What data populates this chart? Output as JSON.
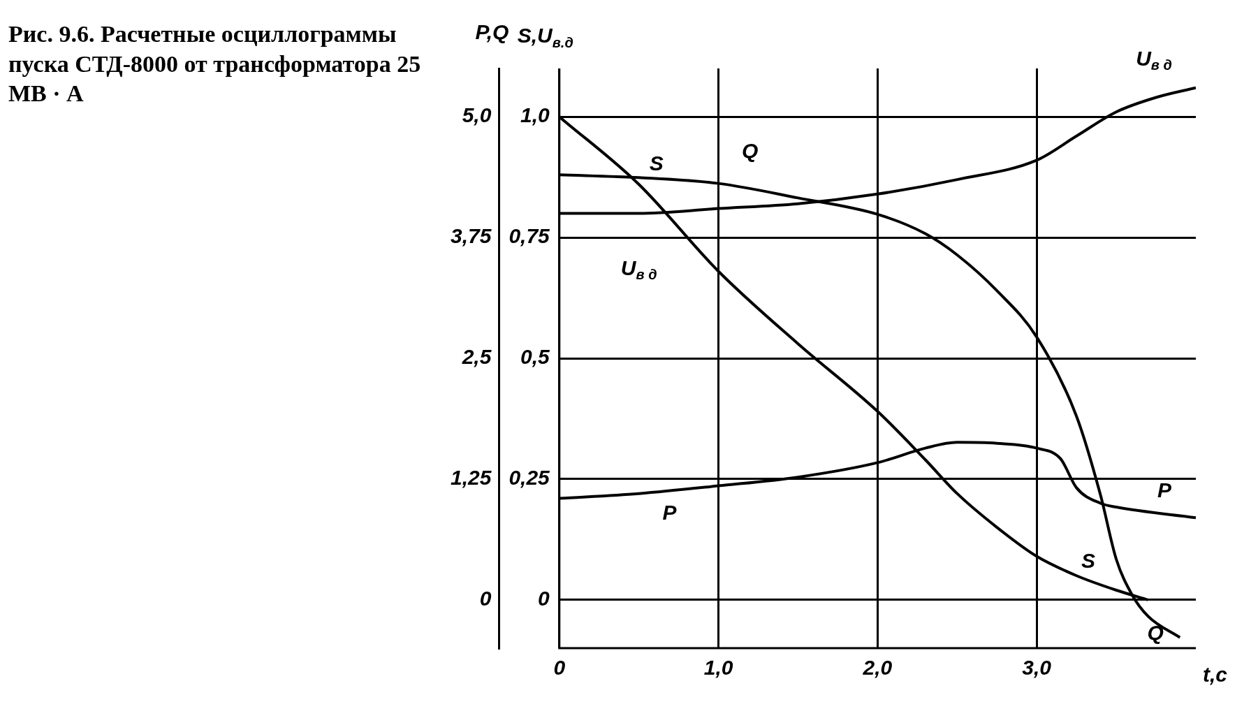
{
  "chart_data": {
    "type": "line",
    "title": "Рис. 9.6. Расчетные осциллограммы пуска СТД-8000 от трансформатора 25 МВ · А",
    "xlabel": "t,c",
    "ylabel": "P,Q",
    "y2label": "S,U$_{в.д}$",
    "series": [
      {
        "name": "S",
        "color": "#000000",
        "axis": "y2",
        "x": [
          0,
          0.5,
          1.0,
          1.5,
          2.0,
          2.3,
          2.5,
          2.75,
          3.0,
          3.25,
          3.5,
          3.7
        ],
        "values": [
          1.0,
          0.86,
          0.68,
          0.53,
          0.39,
          0.29,
          0.22,
          0.15,
          0.09,
          0.05,
          0.02,
          0.0
        ]
      },
      {
        "name": "U$_{в д}$",
        "color": "#000000",
        "axis": "y2",
        "x": [
          0,
          0.5,
          1.0,
          1.5,
          2.0,
          2.5,
          3.0,
          3.25,
          3.5,
          3.75,
          4.0
        ],
        "values": [
          0.8,
          0.8,
          0.81,
          0.82,
          0.84,
          0.87,
          0.91,
          0.96,
          1.01,
          1.04,
          1.06
        ]
      },
      {
        "name": "Q",
        "color": "#000000",
        "axis": "y",
        "x": [
          0,
          0.5,
          1.0,
          1.5,
          2.0,
          2.3,
          2.5,
          2.75,
          3.0,
          3.25,
          3.4,
          3.5,
          3.6,
          3.7,
          3.9
        ],
        "values": [
          4.4,
          4.37,
          4.31,
          4.16,
          3.99,
          3.79,
          3.57,
          3.2,
          2.72,
          1.9,
          1.09,
          0.42,
          0.05,
          -0.17,
          -0.39
        ]
      },
      {
        "name": "P",
        "color": "#000000",
        "axis": "y",
        "x": [
          0,
          0.5,
          1.0,
          1.5,
          2.0,
          2.3,
          2.5,
          2.75,
          3.0,
          3.15,
          3.25,
          3.4,
          3.5,
          4.0
        ],
        "values": [
          1.05,
          1.1,
          1.18,
          1.27,
          1.42,
          1.57,
          1.63,
          1.62,
          1.57,
          1.46,
          1.16,
          1.0,
          0.96,
          0.85
        ]
      }
    ],
    "xlim": [
      0,
      4.0
    ],
    "xticks": [
      0,
      {
        "value": 1,
        "label": "1,0"
      },
      {
        "value": 2,
        "label": "2,0"
      },
      {
        "value": 3,
        "label": "3,0"
      }
    ],
    "ylim": [
      -0.5,
      5.5
    ],
    "yticks": [
      0,
      {
        "value": 1.25,
        "label": "1,25"
      },
      {
        "value": 2.5,
        "label": "2,5"
      },
      {
        "value": 3.75,
        "label": "3,75"
      },
      {
        "value": 5,
        "label": "5,0"
      }
    ],
    "y2lim": [
      -0.1,
      1.1
    ],
    "y2ticks": [
      0,
      {
        "value": 0.25,
        "label": "0,25"
      },
      {
        "value": 0.5,
        "label": "0,5"
      },
      {
        "value": 0.75,
        "label": "0,75"
      },
      {
        "value": 1,
        "label": "1,0"
      }
    ],
    "grid": true,
    "legend": false,
    "marker": "none",
    "line_style": "solid"
  }
}
